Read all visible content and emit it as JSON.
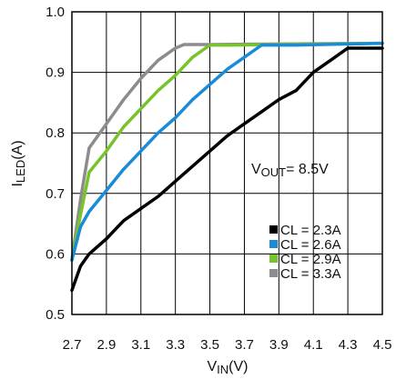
{
  "chart_data": {
    "type": "line",
    "xlabel": {
      "main": "V",
      "sub": "IN",
      "unit": "(V)"
    },
    "ylabel": {
      "main": "I",
      "sub": "LED",
      "unit": "(A)"
    },
    "xlim": [
      2.7,
      4.5
    ],
    "ylim": [
      0.5,
      1.0
    ],
    "x_ticks": [
      "2.7",
      "2.9",
      "3.1",
      "3.3",
      "3.5",
      "3.7",
      "3.9",
      "4.1",
      "4.3",
      "4.5"
    ],
    "y_ticks": [
      "0.5",
      "0.6",
      "0.7",
      "0.8",
      "0.9",
      "1.0"
    ],
    "grid": true,
    "legend_position": "bottom-right",
    "annotation": {
      "main": "V",
      "sub": "OUT",
      "rest": "= 8.5V"
    },
    "series": [
      {
        "name": "CL = 2.3A",
        "color": "#000000",
        "points": [
          [
            2.7,
            0.54
          ],
          [
            2.75,
            0.58
          ],
          [
            2.8,
            0.6
          ],
          [
            2.9,
            0.625
          ],
          [
            3.0,
            0.655
          ],
          [
            3.1,
            0.675
          ],
          [
            3.2,
            0.695
          ],
          [
            3.3,
            0.72
          ],
          [
            3.4,
            0.745
          ],
          [
            3.5,
            0.77
          ],
          [
            3.6,
            0.795
          ],
          [
            3.7,
            0.815
          ],
          [
            3.8,
            0.835
          ],
          [
            3.9,
            0.855
          ],
          [
            4.0,
            0.87
          ],
          [
            4.1,
            0.9
          ],
          [
            4.2,
            0.92
          ],
          [
            4.3,
            0.94
          ],
          [
            4.4,
            0.94
          ],
          [
            4.5,
            0.94
          ]
        ]
      },
      {
        "name": "CL = 2.6A",
        "color": "#1a8bd6",
        "points": [
          [
            2.7,
            0.59
          ],
          [
            2.75,
            0.645
          ],
          [
            2.8,
            0.67
          ],
          [
            2.9,
            0.705
          ],
          [
            3.0,
            0.74
          ],
          [
            3.1,
            0.77
          ],
          [
            3.2,
            0.8
          ],
          [
            3.3,
            0.825
          ],
          [
            3.4,
            0.855
          ],
          [
            3.5,
            0.88
          ],
          [
            3.6,
            0.905
          ],
          [
            3.7,
            0.925
          ],
          [
            3.8,
            0.945
          ],
          [
            4.0,
            0.945
          ],
          [
            4.5,
            0.948
          ]
        ]
      },
      {
        "name": "CL = 2.9A",
        "color": "#77c42a",
        "points": [
          [
            2.7,
            0.59
          ],
          [
            2.75,
            0.665
          ],
          [
            2.8,
            0.735
          ],
          [
            2.9,
            0.77
          ],
          [
            3.0,
            0.81
          ],
          [
            3.1,
            0.84
          ],
          [
            3.2,
            0.87
          ],
          [
            3.3,
            0.895
          ],
          [
            3.4,
            0.925
          ],
          [
            3.5,
            0.945
          ],
          [
            3.6,
            0.945
          ],
          [
            4.5,
            0.948
          ]
        ]
      },
      {
        "name": "CL = 3.3A",
        "color": "#8c8c8c",
        "points": [
          [
            2.7,
            0.59
          ],
          [
            2.75,
            0.69
          ],
          [
            2.8,
            0.775
          ],
          [
            2.9,
            0.815
          ],
          [
            3.0,
            0.855
          ],
          [
            3.1,
            0.89
          ],
          [
            3.2,
            0.92
          ],
          [
            3.3,
            0.94
          ],
          [
            3.35,
            0.946
          ],
          [
            3.5,
            0.946
          ],
          [
            4.5,
            0.948
          ]
        ]
      }
    ]
  }
}
